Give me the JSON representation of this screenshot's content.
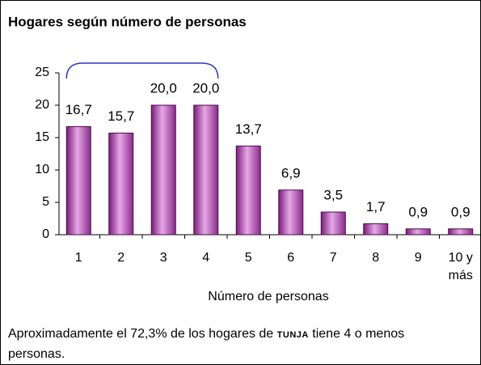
{
  "chart_data": {
    "type": "bar",
    "title": "Hogares según número de personas",
    "categories": [
      "1",
      "2",
      "3",
      "4",
      "5",
      "6",
      "7",
      "8",
      "9",
      "10 y más"
    ],
    "values": [
      16.7,
      15.7,
      20,
      20,
      13.7,
      6.9,
      3.5,
      1.7,
      0.9,
      0.9
    ],
    "value_labels": [
      "16,7",
      "15,7",
      "20,0",
      "20,0",
      "13,7",
      "6,9",
      "3,5",
      "1,7",
      "0,9",
      "0,9"
    ],
    "color": "#a040a0",
    "ylim": [
      0,
      25
    ],
    "yticks": [
      0,
      5,
      10,
      15,
      20,
      25
    ],
    "xlabel": "Número de personas",
    "note": [
      "Aproximadamente el 72,3% de los hogares de ",
      "TUNJA",
      " tiene 4 o menos personas."
    ]
  }
}
